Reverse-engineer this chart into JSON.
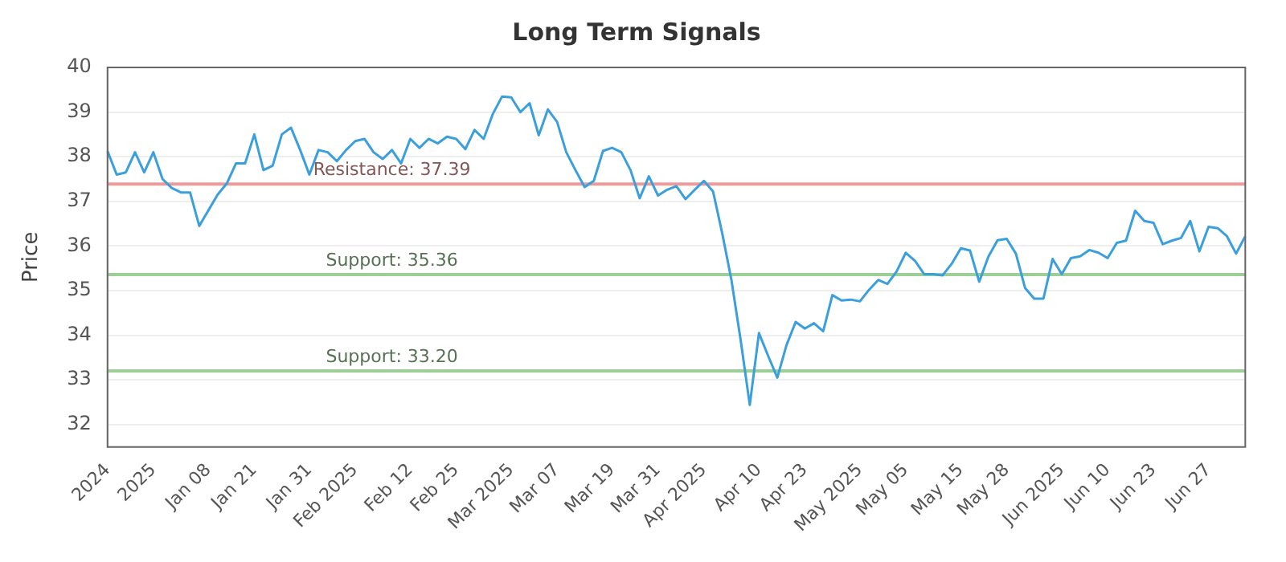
{
  "chart_data": {
    "type": "line",
    "title": "Long Term Signals",
    "ylabel": "Price",
    "categories": [
      "2024",
      null,
      null,
      null,
      null,
      "2025",
      null,
      null,
      null,
      null,
      null,
      "Jan 08",
      null,
      null,
      null,
      null,
      "Jan 21",
      null,
      null,
      null,
      null,
      null,
      "Jan 31",
      null,
      null,
      null,
      null,
      "Feb 2025",
      null,
      null,
      null,
      null,
      null,
      "Feb 12",
      null,
      null,
      null,
      null,
      "Feb 25",
      null,
      null,
      null,
      null,
      null,
      "Mar 2025",
      null,
      null,
      null,
      null,
      "Mar 07",
      null,
      null,
      null,
      null,
      null,
      "Mar 19",
      null,
      null,
      null,
      null,
      "Mar 31",
      null,
      null,
      null,
      null,
      "Apr 2025",
      null,
      null,
      null,
      null,
      null,
      "Apr 10",
      null,
      null,
      null,
      null,
      "Apr 23",
      null,
      null,
      null,
      null,
      null,
      "May 2025",
      null,
      null,
      null,
      null,
      "May 05",
      null,
      null,
      null,
      null,
      null,
      "May 15",
      null,
      null,
      null,
      null,
      "May 28",
      null,
      null,
      null,
      null,
      null,
      "Jun 2025",
      null,
      null,
      null,
      null,
      "Jun 10",
      null,
      null,
      null,
      null,
      "Jun 23",
      null,
      null,
      null,
      null,
      null,
      "Jun 27",
      null,
      null,
      null,
      null
    ],
    "series": [
      {
        "color": "#3a9fdc",
        "values": [
          38.13,
          37.6,
          37.65,
          38.1,
          37.65,
          38.1,
          37.5,
          37.3,
          37.2,
          37.2,
          36.45,
          36.8,
          37.15,
          37.4,
          37.85,
          37.85,
          38.5,
          37.7,
          37.8,
          38.5,
          38.65,
          38.15,
          37.6,
          38.15,
          38.1,
          37.9,
          38.15,
          38.35,
          38.4,
          38.1,
          37.95,
          38.15,
          37.85,
          38.4,
          38.2,
          38.4,
          38.3,
          38.45,
          38.4,
          38.17,
          38.6,
          38.4,
          38.96,
          39.35,
          39.33,
          39.0,
          39.2,
          38.48,
          39.06,
          38.78,
          38.1,
          37.7,
          37.32,
          37.46,
          38.13,
          38.2,
          38.1,
          37.7,
          37.07,
          37.56,
          37.13,
          37.26,
          37.34,
          37.05,
          37.26,
          37.46,
          37.22,
          36.28,
          35.24,
          33.9,
          32.44,
          34.05,
          33.54,
          33.05,
          33.78,
          34.3,
          34.15,
          34.27,
          34.09,
          34.9,
          34.78,
          34.8,
          34.76,
          35.02,
          35.24,
          35.15,
          35.43,
          35.85,
          35.67,
          35.37,
          35.37,
          35.34,
          35.6,
          35.95,
          35.9,
          35.2,
          35.76,
          36.13,
          36.16,
          35.83,
          35.06,
          34.82,
          34.82,
          35.71,
          35.37,
          35.73,
          35.77,
          35.91,
          35.85,
          35.73,
          36.07,
          36.12,
          36.79,
          36.56,
          36.52,
          36.04,
          36.12,
          36.18,
          36.56,
          35.88,
          36.43,
          36.4,
          36.22,
          35.83,
          36.22
        ]
      }
    ],
    "ylim": [
      31.5,
      40
    ],
    "yticks": [
      32,
      33,
      34,
      35,
      36,
      37,
      38,
      39,
      40
    ],
    "grid": "y",
    "legend": false,
    "marker": "none",
    "line_style": "solid",
    "ref_lines": [
      {
        "axis": "y",
        "value": 37.39,
        "label": "Resistance: 37.39",
        "color": "#ef9a9a"
      },
      {
        "axis": "y",
        "value": 35.36,
        "label": "Support: 35.36",
        "color": "#9ccf96"
      },
      {
        "axis": "y",
        "value": 33.2,
        "label": "Support: 33.20",
        "color": "#9ccf96"
      }
    ]
  }
}
